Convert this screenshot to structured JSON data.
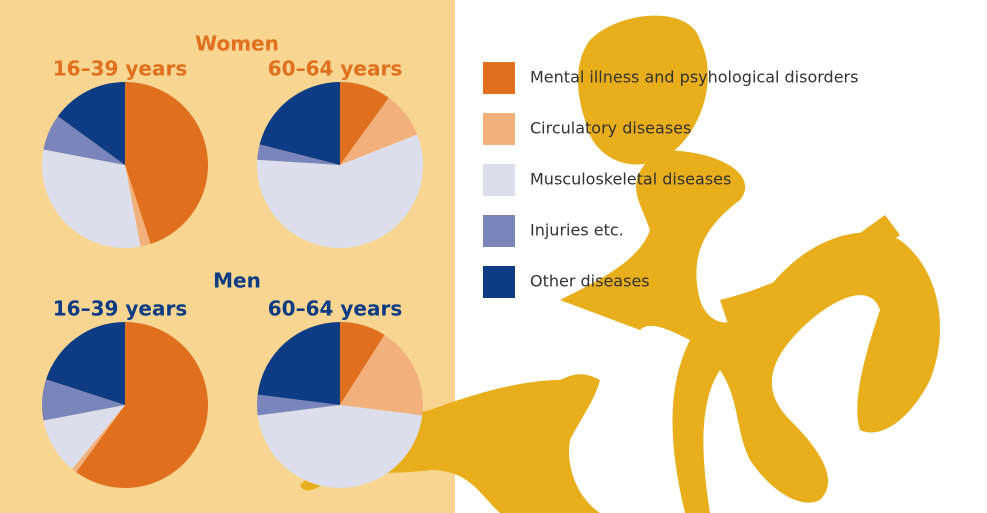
{
  "groups": [
    "Women",
    "Men"
  ],
  "chart_data": [
    {
      "type": "pie",
      "group": 0,
      "title": "16–39 years",
      "categories": [
        "Mental illness and psyhological disorders",
        "Circulatory diseases",
        "Musculoskeletal diseases",
        "Injuries etc.",
        "Other diseases"
      ],
      "colors": [
        "#e0701e",
        "#f2b07c",
        "#dcdfeb",
        "#7a86bb",
        "#0d3b84"
      ],
      "values": [
        45,
        2,
        31,
        7,
        15
      ]
    },
    {
      "type": "pie",
      "group": 0,
      "title": "60–64 years",
      "categories": [
        "Mental illness and psyhological disorders",
        "Circulatory diseases",
        "Musculoskeletal diseases",
        "Injuries etc.",
        "Other diseases"
      ],
      "colors": [
        "#e0701e",
        "#f2b07c",
        "#dcdfeb",
        "#7a86bb",
        "#0d3b84"
      ],
      "values": [
        10,
        9,
        57,
        3,
        21
      ]
    },
    {
      "type": "pie",
      "group": 1,
      "title": "16–39 years",
      "categories": [
        "Mental illness and psyhological disorders",
        "Circulatory diseases",
        "Musculoskeletal diseases",
        "Injuries etc.",
        "Other diseases"
      ],
      "colors": [
        "#e0701e",
        "#f2b07c",
        "#dcdfeb",
        "#7a86bb",
        "#0d3b84"
      ],
      "values": [
        60,
        1,
        11,
        8,
        20
      ]
    },
    {
      "type": "pie",
      "group": 1,
      "title": "60–64 years",
      "categories": [
        "Mental illness and psyhological disorders",
        "Circulatory diseases",
        "Musculoskeletal diseases",
        "Injuries etc.",
        "Other diseases"
      ],
      "colors": [
        "#e0701e",
        "#f2b07c",
        "#dcdfeb",
        "#7a86bb",
        "#0d3b84"
      ],
      "values": [
        9,
        18,
        46,
        4,
        23
      ]
    }
  ]
}
